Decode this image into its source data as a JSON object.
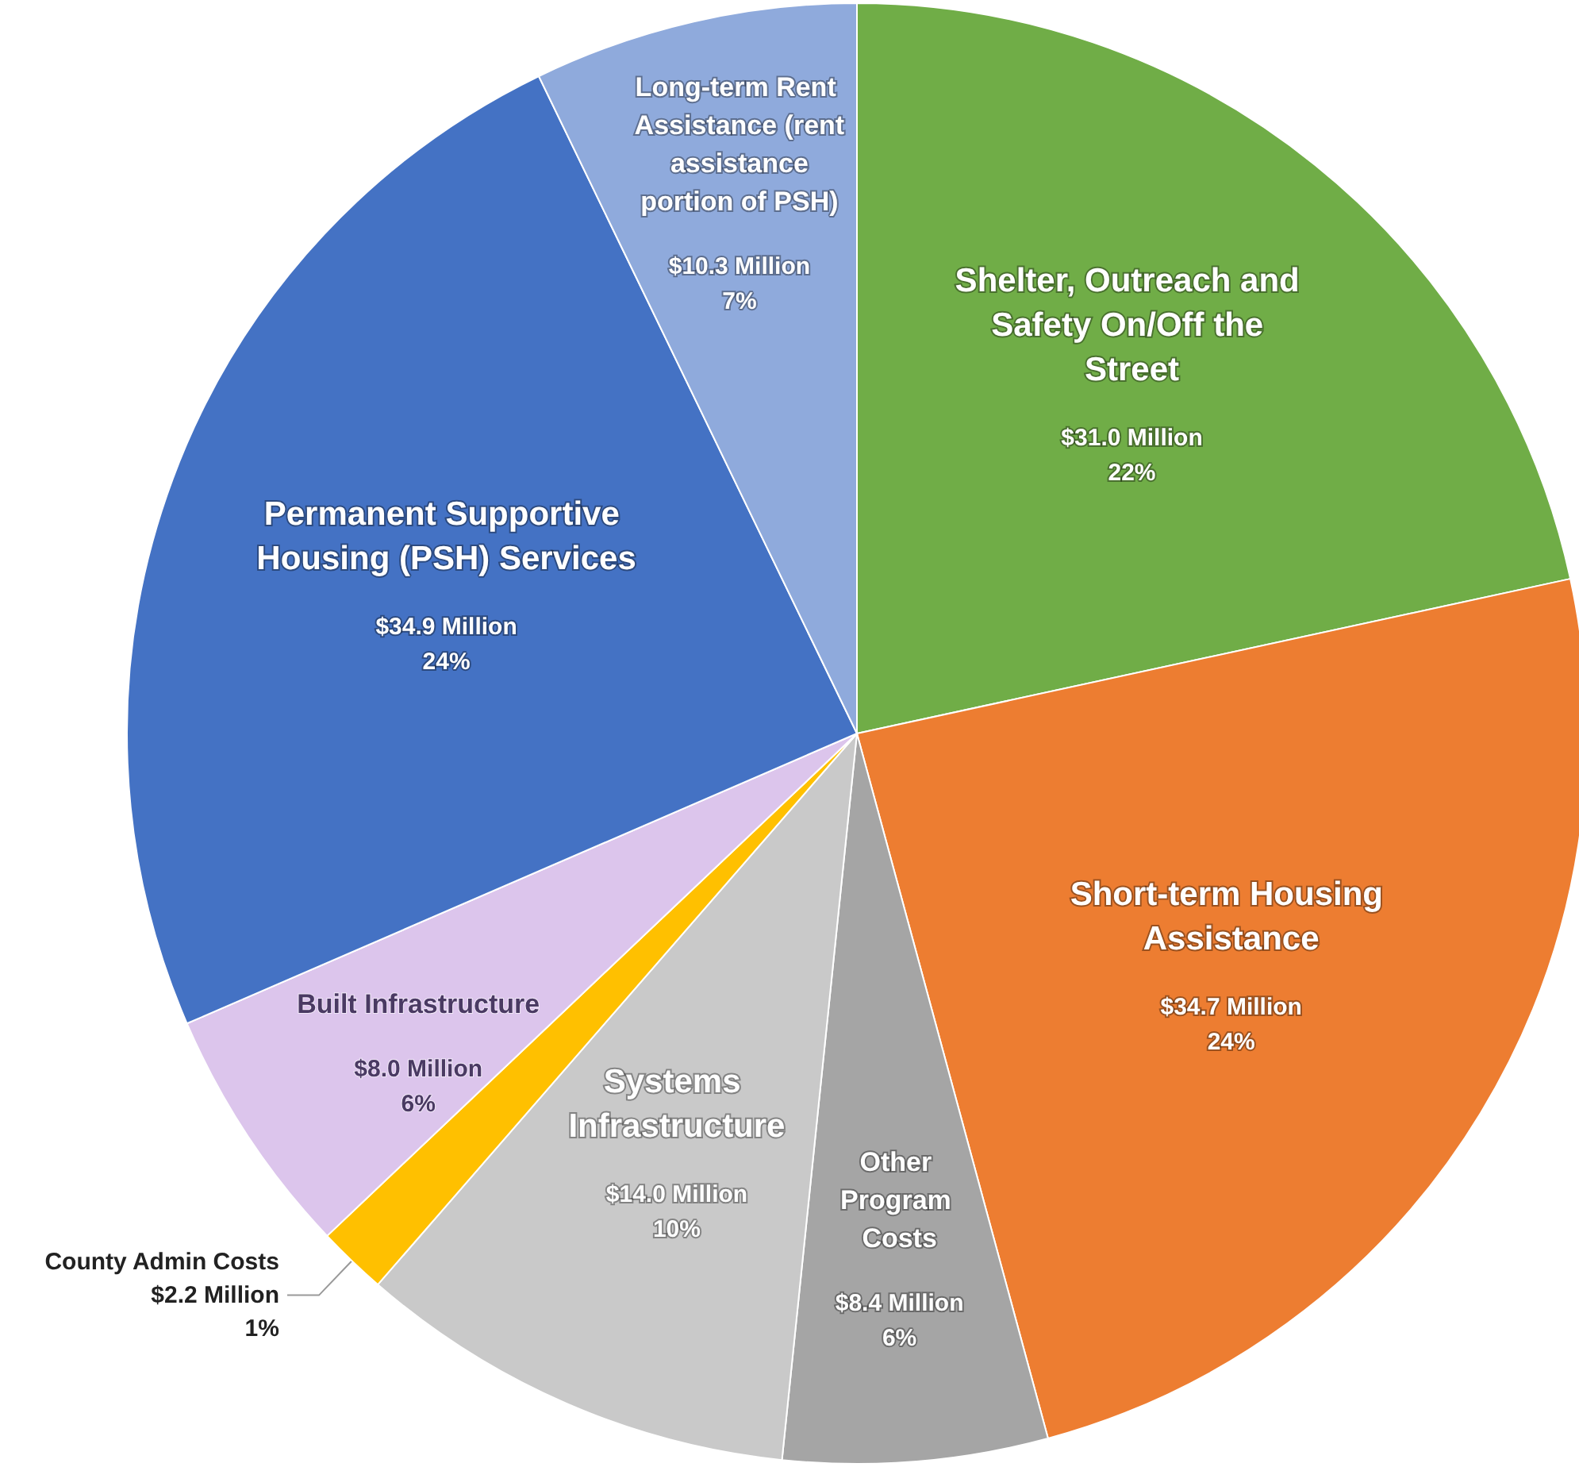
{
  "chart_data": {
    "type": "pie",
    "categories": [
      "Shelter, Outreach and Safety On/Off the Street",
      "Short-term Housing Assistance",
      "Other Program Costs",
      "Systems Infrastructure",
      "County Admin Costs",
      "Built Infrastructure",
      "Permanent Supportive Housing (PSH) Services",
      "Long-term Rent Assistance (rent assistance portion of PSH)"
    ],
    "values": [
      31.0,
      34.7,
      8.4,
      14.0,
      2.2,
      8.0,
      34.9,
      10.3
    ],
    "value_labels": [
      "$31.0 Million\n22%",
      "$34.7 Million\n24%",
      "$8.4 Million\n6%",
      "$14.0 Million\n10%",
      "$2.2 Million\n1%",
      "$8.0 Million\n6%",
      "$34.9 Million\n24%",
      "$10.3 Million\n7%"
    ],
    "colors": [
      "#70ad47",
      "#ed7d31",
      "#a5a5a5",
      "#c9c9c9",
      "#ffc000",
      "#dcc5ec",
      "#4472c4",
      "#8faadc"
    ],
    "legend": false
  }
}
